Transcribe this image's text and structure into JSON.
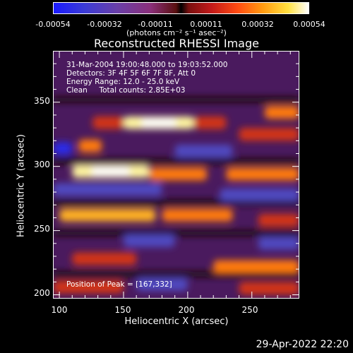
{
  "colorbar": {
    "ticks": [
      "-0.00054",
      "-0.00032",
      "-0.00011",
      "0.00011",
      "0.00032",
      "0.00054"
    ],
    "unit_label": "(photons cm⁻² s⁻¹ asec⁻²)",
    "range": [
      -0.00054,
      0.00054
    ]
  },
  "annotations": {
    "time": "31-Mar-2004 19:00:48.000 to 19:03:52.000",
    "detectors": "Detectors: 3F 4F 5F 6F 7F 8F, Att 0",
    "energy": "Energy Range: 12.0 - 25.0 keV",
    "method": "Clean     Total counts: 2.85E+03",
    "peak": "Position of Peak = [167,332]"
  },
  "footer": {
    "date": "29-Apr-2022 22:20"
  },
  "chart_data": {
    "type": "heatmap",
    "title": "Reconstructed RHESSI Image",
    "xlabel": "Heliocentric X (arcsec)",
    "ylabel": "Heliocentric Y (arcsec)",
    "xlim": [
      95,
      287
    ],
    "ylim": [
      197,
      390
    ],
    "x_ticks": [
      "100",
      "150",
      "200",
      "250"
    ],
    "y_ticks": [
      "200",
      "250",
      "300",
      "350"
    ],
    "colormap": [
      "#1a1aff",
      "#6a3fa8",
      "#000000",
      "#c31a1a",
      "#ff9a10",
      "#ffffff"
    ],
    "peak": [
      167,
      332
    ],
    "bands": [
      {
        "y": 334,
        "x": [
          150,
          205
        ],
        "level": 1.0
      },
      {
        "y": 334,
        "x": [
          126,
          150
        ],
        "level": 0.55
      },
      {
        "y": 334,
        "x": [
          205,
          230
        ],
        "level": 0.5
      },
      {
        "y": 342,
        "x": [
          260,
          287
        ],
        "level": 0.6
      },
      {
        "y": 325,
        "x": [
          240,
          287
        ],
        "level": 0.45
      },
      {
        "y": 316,
        "x": [
          115,
          133
        ],
        "level": 0.6
      },
      {
        "y": 314,
        "x": [
          95,
          110
        ],
        "level": -1.0
      },
      {
        "y": 312,
        "x": [
          190,
          235
        ],
        "level": -0.55
      },
      {
        "y": 296,
        "x": [
          110,
          170
        ],
        "level": 0.95
      },
      {
        "y": 294,
        "x": [
          170,
          215
        ],
        "level": 0.7
      },
      {
        "y": 294,
        "x": [
          230,
          287
        ],
        "level": 0.6
      },
      {
        "y": 282,
        "x": [
          95,
          180
        ],
        "level": -0.6
      },
      {
        "y": 278,
        "x": [
          225,
          287
        ],
        "level": -0.6
      },
      {
        "y": 262,
        "x": [
          100,
          175
        ],
        "level": 0.75
      },
      {
        "y": 262,
        "x": [
          180,
          235
        ],
        "level": 0.7
      },
      {
        "y": 258,
        "x": [
          255,
          287
        ],
        "level": 0.55
      },
      {
        "y": 242,
        "x": [
          150,
          190
        ],
        "level": -0.55
      },
      {
        "y": 240,
        "x": [
          255,
          287
        ],
        "level": -0.5
      },
      {
        "y": 228,
        "x": [
          110,
          160
        ],
        "level": 0.55
      },
      {
        "y": 222,
        "x": [
          220,
          287
        ],
        "level": 0.7
      },
      {
        "y": 206,
        "x": [
          95,
          150
        ],
        "level": 0.5
      },
      {
        "y": 208,
        "x": [
          160,
          200
        ],
        "level": -0.55
      },
      {
        "y": 205,
        "x": [
          240,
          287
        ],
        "level": 0.45
      }
    ]
  }
}
